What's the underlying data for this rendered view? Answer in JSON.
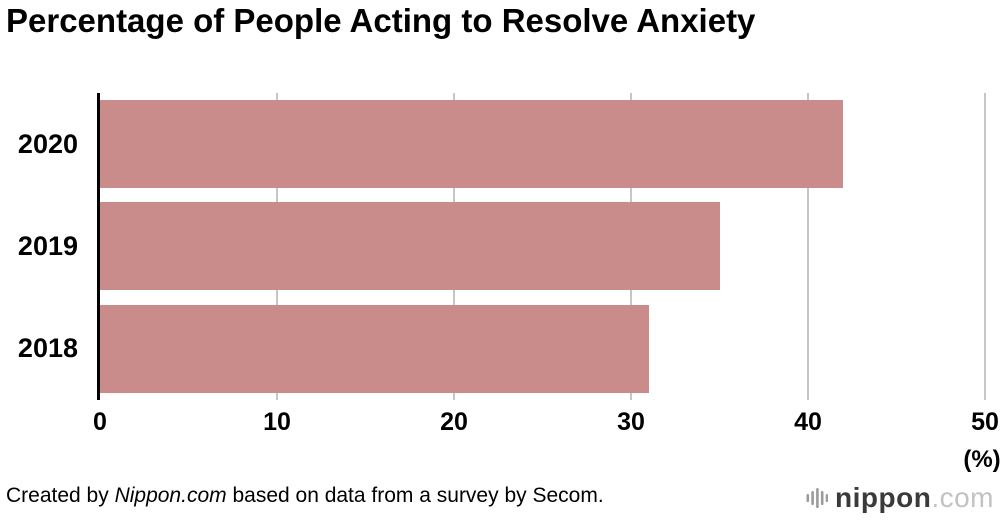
{
  "chart_data": {
    "type": "bar",
    "orientation": "horizontal",
    "title": "Percentage of People Acting to Resolve Anxiety",
    "categories": [
      "2020",
      "2019",
      "2018"
    ],
    "values": [
      42,
      35,
      31
    ],
    "xlabel": "(%)",
    "ylabel": "",
    "xlim": [
      0,
      50
    ],
    "xticks": [
      0,
      10,
      20,
      30,
      40,
      50
    ],
    "grid": true,
    "legend": false,
    "bar_color": "#ca8b8b"
  },
  "footer": {
    "credit_prefix": "Created by ",
    "credit_source": "Nippon.com",
    "credit_suffix": " based on data from a survey by Secom.",
    "logo_brand": "nippon",
    "logo_tld": ".com"
  },
  "colors": {
    "bar": "#ca8b8b",
    "gridline": "#c6c6c6",
    "axis": "#000000",
    "logo_brand": "#3a3a3a",
    "logo_tld": "#c2c2c2"
  }
}
